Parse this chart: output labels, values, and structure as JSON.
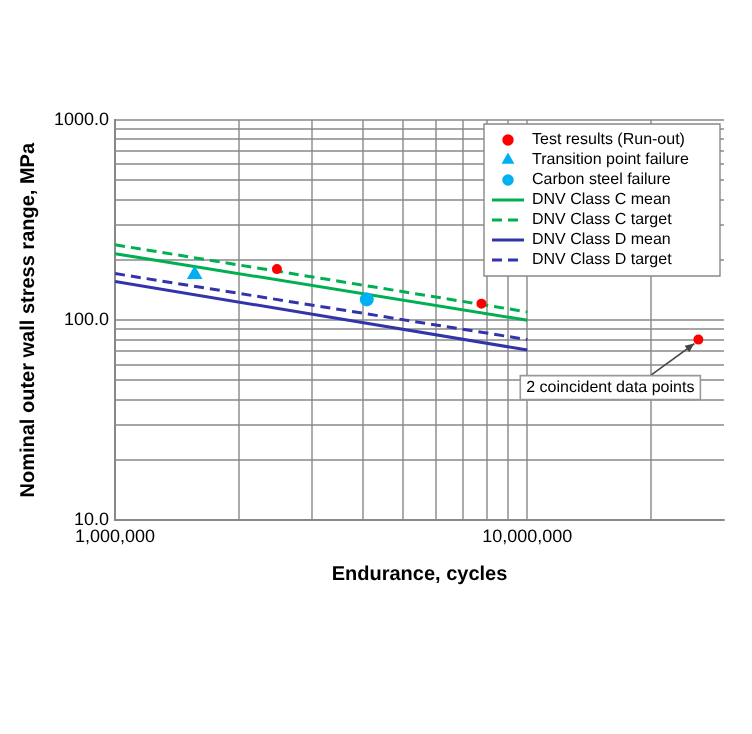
{
  "chart_data": {
    "type": "scatter",
    "xlabel": "Endurance, cycles",
    "ylabel": "Nominal outer wall stress range, MPa",
    "log": "xy",
    "grid": true,
    "legend": "top right",
    "xlim": [
      1000000,
      30000000
    ],
    "xticks": [
      {
        "value": 1000000,
        "label": "1,000,000"
      },
      {
        "value": 2000000,
        "label": null
      },
      {
        "value": 3000000,
        "label": null
      },
      {
        "value": 4000000,
        "label": null
      },
      {
        "value": 5000000,
        "label": null
      },
      {
        "value": 6000000,
        "label": null
      },
      {
        "value": 7000000,
        "label": null
      },
      {
        "value": 8000000,
        "label": null
      },
      {
        "value": 9000000,
        "label": null
      },
      {
        "value": 10000000,
        "label": "10,000,000"
      },
      {
        "value": 20000000,
        "label": null
      }
    ],
    "ylim": [
      10,
      1000
    ],
    "yticks": [
      {
        "value": 10,
        "label": "10.0"
      },
      {
        "value": 20,
        "label": null
      },
      {
        "value": 30,
        "label": null
      },
      {
        "value": 40,
        "label": null
      },
      {
        "value": 50,
        "label": null
      },
      {
        "value": 60,
        "label": null
      },
      {
        "value": 70,
        "label": null
      },
      {
        "value": 80,
        "label": null
      },
      {
        "value": 90,
        "label": null
      },
      {
        "value": 100,
        "label": "100.0"
      },
      {
        "value": 200,
        "label": null
      },
      {
        "value": 300,
        "label": null
      },
      {
        "value": 400,
        "label": null
      },
      {
        "value": 500,
        "label": null
      },
      {
        "value": 600,
        "label": null
      },
      {
        "value": 700,
        "label": null
      },
      {
        "value": 800,
        "label": null
      },
      {
        "value": 900,
        "label": null
      },
      {
        "value": 1000,
        "label": "1000.0"
      }
    ],
    "series": [
      {
        "name": "Test results (Run-out)",
        "type": "scatter",
        "marker": "circle",
        "color": "#ff0000",
        "x": [
          2470000,
          7740000,
          26000000
        ],
        "values": [
          180,
          121,
          80
        ]
      },
      {
        "name": "Transition point failure",
        "type": "scatter",
        "marker": "triangle",
        "color": "#00b0f0",
        "x": [
          1560000
        ],
        "values": [
          169
        ]
      },
      {
        "name": "Carbon steel failure",
        "type": "scatter",
        "marker": "circle",
        "color": "#00b0f0",
        "x": [
          4080000
        ],
        "values": [
          127
        ]
      },
      {
        "name": "DNV Class C mean",
        "type": "line",
        "marker": "none",
        "line_style": "solid",
        "color": "#00b050",
        "x": [
          1000000,
          10000000
        ],
        "values": [
          215,
          100
        ]
      },
      {
        "name": "DNV Class C target",
        "type": "line",
        "marker": "none",
        "line_style": "dashed",
        "color": "#00b050",
        "x": [
          1000000,
          10000000
        ],
        "values": [
          238,
          110
        ]
      },
      {
        "name": "DNV Class D mean",
        "type": "line",
        "marker": "none",
        "line_style": "solid",
        "color": "#3333aa",
        "x": [
          1000000,
          10000000
        ],
        "values": [
          156,
          71
        ]
      },
      {
        "name": "DNV Class D target",
        "type": "line",
        "marker": "none",
        "line_style": "dashed",
        "color": "#3333aa",
        "x": [
          1000000,
          10000000
        ],
        "values": [
          171,
          80
        ]
      }
    ],
    "annotations": [
      {
        "text": "2 coincident data points",
        "x": 26000000,
        "y": 80
      }
    ]
  }
}
